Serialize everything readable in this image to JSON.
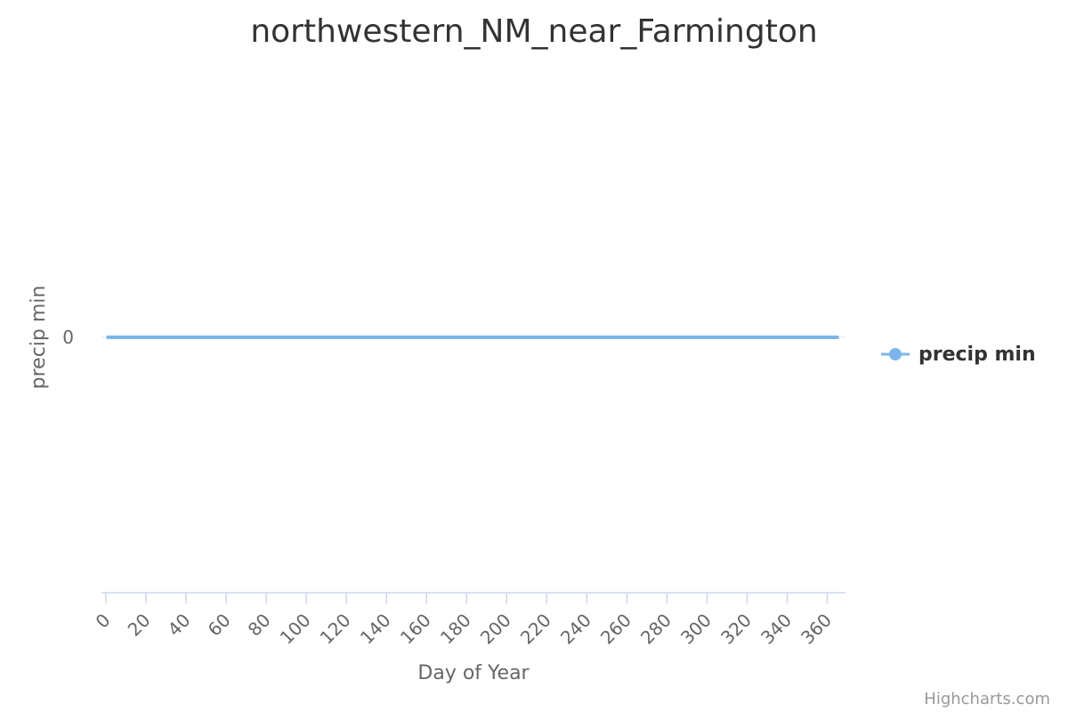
{
  "chart_data": {
    "type": "line",
    "title": "northwestern_NM_near_Farmington",
    "xlabel": "Day of Year",
    "ylabel": "precip min",
    "xlim": [
      0,
      365
    ],
    "x_ticks": [
      0,
      20,
      40,
      60,
      80,
      100,
      120,
      140,
      160,
      180,
      200,
      220,
      240,
      260,
      280,
      300,
      320,
      340,
      360
    ],
    "y_ticks": [
      0
    ],
    "grid": true,
    "legend": "right",
    "series": [
      {
        "name": "precip min",
        "color": "#7cb5ec",
        "x": [
          1,
          365
        ],
        "values": [
          0,
          0
        ]
      }
    ]
  },
  "credits": "Highcharts.com"
}
